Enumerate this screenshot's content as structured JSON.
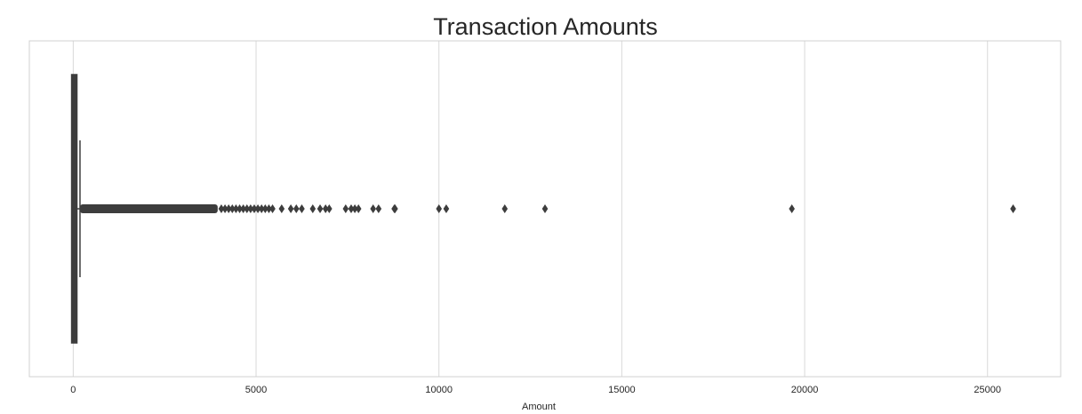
{
  "chart_data": {
    "type": "boxplot",
    "orientation": "horizontal",
    "title": "Transaction Amounts",
    "xlabel": "Amount",
    "ylabel": "",
    "xlim": [
      -1200,
      27000
    ],
    "xticks": [
      0,
      5000,
      10000,
      15000,
      20000,
      25000
    ],
    "xtick_labels": [
      "0",
      "5000",
      "10000",
      "15000",
      "20000",
      "25000"
    ],
    "grid": "vertical",
    "box": {
      "min": 0,
      "q1": 5,
      "median": 22,
      "q3": 77,
      "whisker_high": 185
    },
    "outlier_dense_range": [
      185,
      3950
    ],
    "outliers": [
      4050,
      4150,
      4250,
      4350,
      4450,
      4550,
      4650,
      4750,
      4850,
      4950,
      5050,
      5150,
      5250,
      5350,
      5450,
      5700,
      5950,
      6100,
      6250,
      6550,
      6750,
      6900,
      7000,
      7450,
      7600,
      7700,
      7800,
      8200,
      8350,
      8780,
      8800,
      10000,
      10200,
      11800,
      12900,
      19650,
      25700
    ],
    "colors": {
      "box_edge": "#3d3d3d",
      "box_fill": "#3d3d3d",
      "grid": "#d9d9d9",
      "frame": "#d0d0d0",
      "text": "#262626"
    }
  }
}
